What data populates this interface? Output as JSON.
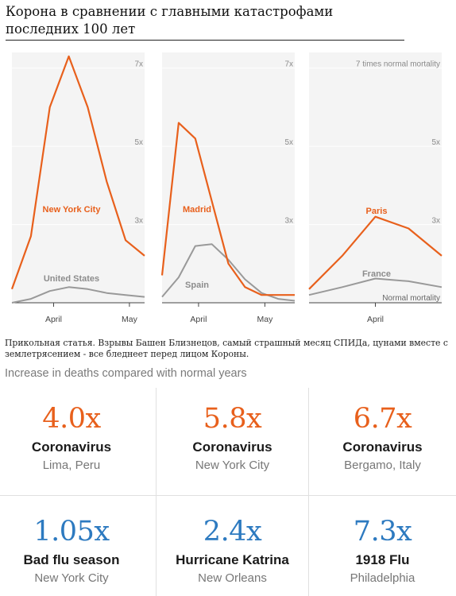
{
  "post": {
    "title": "Корона в сравнении с главными катастрофами последних 100 лет",
    "caption": "Прикольная статья. Взрывы Башен Близнецов, самый страшный месяц СПИДа, цунами вместе с землетрясением - все бледнеет перед лицом Короны.",
    "subhead": "Increase in deaths compared with normal years"
  },
  "colors": {
    "coronavirus": "#e8601c",
    "baseline": "#999999",
    "other": "#2d7ac0",
    "grid": "#e2e2e2"
  },
  "chart_data": [
    {
      "type": "line",
      "title": "",
      "xlabel": "",
      "ylabel": "",
      "ylim": [
        1,
        7.4
      ],
      "y_ticks": [
        3,
        5,
        7
      ],
      "y_tick_labels": [
        "3x",
        "5x",
        "7x"
      ],
      "x_ticks": [
        "April",
        "May"
      ],
      "series": [
        {
          "name": "New York City",
          "x": [
            0,
            1,
            2,
            3,
            4,
            5,
            6,
            7
          ],
          "values": [
            1.35,
            2.7,
            6.0,
            7.3,
            6.0,
            4.1,
            2.6,
            2.2
          ]
        },
        {
          "name": "United States",
          "x": [
            0,
            1,
            2,
            3,
            4,
            5,
            6,
            7
          ],
          "values": [
            1.0,
            1.1,
            1.3,
            1.4,
            1.35,
            1.25,
            1.2,
            1.15
          ]
        }
      ]
    },
    {
      "type": "line",
      "title": "",
      "xlabel": "",
      "ylabel": "",
      "ylim": [
        1,
        7.4
      ],
      "y_ticks": [
        3,
        5,
        7
      ],
      "y_tick_labels": [
        "3x",
        "5x",
        "7x"
      ],
      "x_ticks": [
        "April",
        "May"
      ],
      "series": [
        {
          "name": "Madrid",
          "x": [
            0,
            1,
            2,
            3,
            4,
            5,
            6,
            7,
            8
          ],
          "values": [
            1.7,
            5.6,
            5.2,
            3.6,
            2.0,
            1.4,
            1.2,
            1.2,
            1.2
          ]
        },
        {
          "name": "Spain",
          "x": [
            0,
            1,
            2,
            3,
            4,
            5,
            6,
            7,
            8
          ],
          "values": [
            1.15,
            1.65,
            2.45,
            2.5,
            2.1,
            1.6,
            1.25,
            1.1,
            1.05
          ]
        }
      ]
    },
    {
      "type": "line",
      "title": "",
      "xlabel": "",
      "ylabel": "",
      "ylim": [
        1,
        7.4
      ],
      "y_ticks": [
        3,
        5,
        7
      ],
      "y_tick_labels": [
        "3x",
        "5x",
        "7 times normal mortality"
      ],
      "x_ticks": [
        "April"
      ],
      "baseline_label": "Normal mortality",
      "series": [
        {
          "name": "Paris",
          "x": [
            0,
            1,
            2,
            3,
            4
          ],
          "values": [
            1.35,
            2.2,
            3.2,
            2.9,
            2.2
          ]
        },
        {
          "name": "France",
          "x": [
            0,
            1,
            2,
            3,
            4
          ],
          "values": [
            1.2,
            1.4,
            1.62,
            1.55,
            1.4
          ]
        }
      ]
    }
  ],
  "stats": [
    {
      "ratio": "4.0x",
      "event": "Coronavirus",
      "place": "Lima, Peru",
      "kind": "coronavirus"
    },
    {
      "ratio": "5.8x",
      "event": "Coronavirus",
      "place": "New York City",
      "kind": "coronavirus"
    },
    {
      "ratio": "6.7x",
      "event": "Coronavirus",
      "place": "Bergamo, Italy",
      "kind": "coronavirus"
    },
    {
      "ratio": "1.05x",
      "event": "Bad flu season",
      "place": "New York City",
      "kind": "other"
    },
    {
      "ratio": "2.4x",
      "event": "Hurricane Katrina",
      "place": "New Orleans",
      "kind": "other"
    },
    {
      "ratio": "7.3x",
      "event": "1918 Flu",
      "place": "Philadelphia",
      "kind": "other"
    }
  ]
}
